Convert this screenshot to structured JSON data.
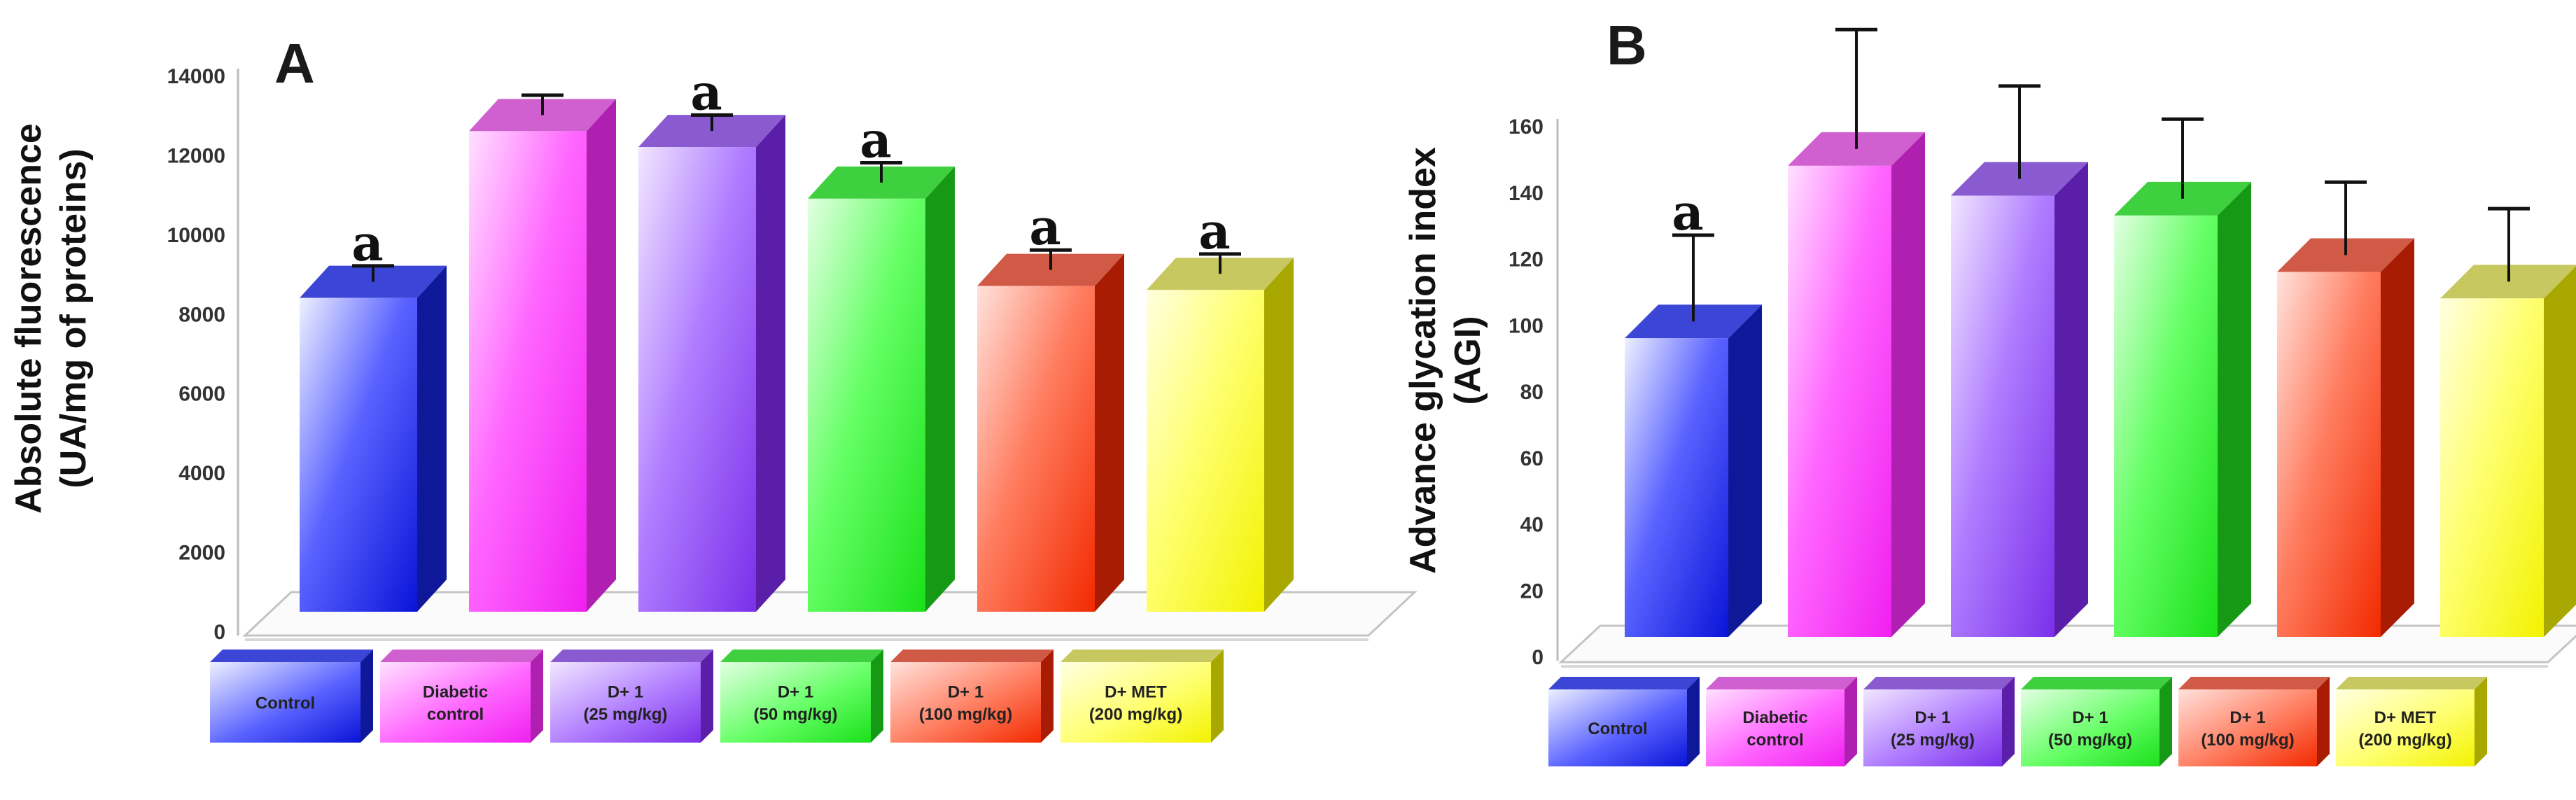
{
  "chart_data": [
    {
      "type": "bar",
      "panel": "A",
      "ylabel_lines": [
        "Absolute fluorescence",
        "(UA/mg of proteins)"
      ],
      "ylim": [
        0,
        14000
      ],
      "yticks": [
        0,
        2000,
        4000,
        6000,
        8000,
        10000,
        12000,
        14000
      ],
      "categories": [
        "Control",
        "Diabetic control",
        "D+ 1 (25 mg/kg)",
        "D+ 1 (50 mg/kg)",
        "D+ 1 (100 mg/kg)",
        "D+ MET (200 mg/kg)"
      ],
      "legend_lines": [
        [
          "Control"
        ],
        [
          "Diabetic",
          "control"
        ],
        [
          "D+ 1",
          "(25 mg/kg)"
        ],
        [
          "D+ 1",
          "(50 mg/kg)"
        ],
        [
          "D+ 1",
          "(100 mg/kg)"
        ],
        [
          "D+ MET",
          "(200 mg/kg)"
        ]
      ],
      "values": [
        8400,
        12600,
        12200,
        10900,
        8700,
        8600
      ],
      "errors": [
        400,
        500,
        400,
        500,
        500,
        500
      ],
      "significance": [
        "a",
        "",
        "a",
        "a",
        "a",
        "a"
      ]
    },
    {
      "type": "bar",
      "panel": "B",
      "ylabel_lines": [
        "Advance glycation index",
        "(AGI)"
      ],
      "ylim": [
        0,
        160
      ],
      "yticks": [
        0,
        20,
        40,
        60,
        80,
        100,
        120,
        140,
        160
      ],
      "categories": [
        "Control",
        "Diabetic control",
        "D+ 1 (25 mg/kg)",
        "D+ 1 (50 mg/kg)",
        "D+ 1 (100 mg/kg)",
        "D+ MET (200 mg/kg)"
      ],
      "legend_lines": [
        [
          "Control"
        ],
        [
          "Diabetic",
          "control"
        ],
        [
          "D+ 1",
          "(25 mg/kg)"
        ],
        [
          "D+ 1",
          "(50 mg/kg)"
        ],
        [
          "D+ 1",
          "(100 mg/kg)"
        ],
        [
          "D+ MET",
          "(200 mg/kg)"
        ]
      ],
      "values": [
        96,
        148,
        139,
        133,
        116,
        108
      ],
      "errors": [
        26,
        36,
        28,
        24,
        22,
        22
      ],
      "significance": [
        "a",
        "",
        "",
        "",
        "",
        ""
      ]
    }
  ],
  "colors": {
    "bars": [
      {
        "light": "#eef0ff",
        "mid": "#5a63ff",
        "dark": "#0a14d8",
        "side": "#10189a",
        "top": "#3c46d6"
      },
      {
        "light": "#ffe0ff",
        "mid": "#ff66ff",
        "dark": "#f020f0",
        "side": "#b020b0",
        "top": "#d060d0"
      },
      {
        "light": "#f1e6ff",
        "mid": "#b07cff",
        "dark": "#7a30ea",
        "side": "#5a1ea8",
        "top": "#8a5ad0"
      },
      {
        "light": "#e2ffe2",
        "mid": "#66ff66",
        "dark": "#1be01b",
        "side": "#169a16",
        "top": "#3fd03f"
      },
      {
        "light": "#ffe2dc",
        "mid": "#ff7d60",
        "dark": "#f22a00",
        "side": "#a81c04",
        "top": "#d05a46"
      },
      {
        "light": "#ffffe0",
        "mid": "#ffff70",
        "dark": "#f2f200",
        "side": "#a8a800",
        "top": "#c8c860"
      }
    ]
  }
}
